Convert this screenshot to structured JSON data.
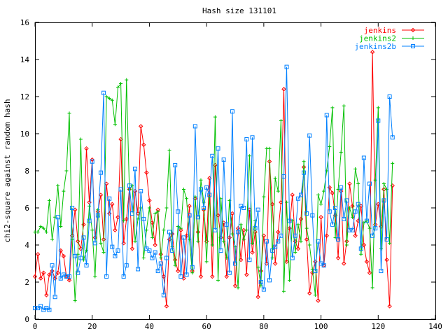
{
  "chart_data": {
    "type": "line",
    "title": "Hash size 131101",
    "xlabel": "",
    "ylabel": "chi2-square against random hash",
    "xlim": [
      0,
      140
    ],
    "ylim": [
      0,
      16
    ],
    "x_ticks": [
      "0",
      "20",
      "40",
      "60",
      "80",
      "100",
      "120",
      "140"
    ],
    "y_ticks": [
      "0",
      "2",
      "4",
      "6",
      "8",
      "10",
      "12",
      "14",
      "16"
    ],
    "grid": false,
    "legend_position": "top-right",
    "series": [
      {
        "name": "jenkins",
        "color": "#ff0000",
        "marker": "diamond",
        "x": [
          0,
          1,
          2,
          3,
          4,
          5,
          6,
          7,
          8,
          9,
          10,
          11,
          12,
          13,
          14,
          15,
          16,
          17,
          18,
          19,
          20,
          21,
          22,
          23,
          24,
          25,
          26,
          27,
          28,
          29,
          30,
          31,
          32,
          33,
          34,
          35,
          36,
          37,
          38,
          39,
          40,
          41,
          42,
          43,
          44,
          45,
          46,
          47,
          48,
          49,
          50,
          51,
          52,
          53,
          54,
          55,
          56,
          57,
          58,
          59,
          60,
          61,
          62,
          63,
          64,
          65,
          66,
          67,
          68,
          69,
          70,
          71,
          72,
          73,
          74,
          75,
          76,
          77,
          78,
          79,
          80,
          81,
          82,
          83,
          84,
          85,
          86,
          87,
          88,
          89,
          90,
          91,
          92,
          93,
          94,
          95,
          96,
          97,
          98,
          99,
          100,
          101,
          102,
          103,
          104,
          105,
          106,
          107,
          108,
          109,
          110,
          111,
          112,
          113,
          114,
          115,
          116,
          117,
          118,
          119,
          120,
          121,
          122,
          123,
          124,
          125
        ],
        "values": [
          2.3,
          3.5,
          2.2,
          2.5,
          1.3,
          2.4,
          2.6,
          2.2,
          2.5,
          3.7,
          3.4,
          2.3,
          2.1,
          4.5,
          5.9,
          4.2,
          3.8,
          5.1,
          9.2,
          6.3,
          8.6,
          4.4,
          5.8,
          6.7,
          4.3,
          7.3,
          5.7,
          6.2,
          4.8,
          5.5,
          9.7,
          4.1,
          5.4,
          7.0,
          3.8,
          6.9,
          5.7,
          10.4,
          9.4,
          7.9,
          6.4,
          5.2,
          4.0,
          5.9,
          3.5,
          2.3,
          0.7,
          4.3,
          4.6,
          3.2,
          2.6,
          4.8,
          2.2,
          4.5,
          6.1,
          2.6,
          6.5,
          4.7,
          2.3,
          5.9,
          4.2,
          7.6,
          2.3,
          8.3,
          5.6,
          4.4,
          5.2,
          2.3,
          4.4,
          5.7,
          1.8,
          4.9,
          3.2,
          4.8,
          2.4,
          5.9,
          3.6,
          4.7,
          1.2,
          2.6,
          4.5,
          3.0,
          8.5,
          6.2,
          3.0,
          4.7,
          6.3,
          12.4,
          3.1,
          4.9,
          6.7,
          4.2,
          3.8,
          5.4,
          8.2,
          4.3,
          1.4,
          2.5,
          3.1,
          1.0,
          5.5,
          2.9,
          4.5,
          7.1,
          6.8,
          5.6,
          3.3,
          6.9,
          3.0,
          4.2,
          7.3,
          6.1,
          4.5,
          5.3,
          6.1,
          4.0,
          3.1,
          2.5,
          14.4,
          5.1,
          6.2,
          5.0,
          7.0,
          3.2,
          0.7,
          7.2
        ]
      },
      {
        "name": "jenkins2",
        "color": "#00c000",
        "marker": "plus",
        "x": [
          0,
          1,
          2,
          3,
          4,
          5,
          6,
          7,
          8,
          9,
          10,
          11,
          12,
          13,
          14,
          15,
          16,
          17,
          18,
          19,
          20,
          21,
          22,
          23,
          24,
          25,
          26,
          27,
          28,
          29,
          30,
          31,
          32,
          33,
          34,
          35,
          36,
          37,
          38,
          39,
          40,
          41,
          42,
          43,
          44,
          45,
          46,
          47,
          48,
          49,
          50,
          51,
          52,
          53,
          54,
          55,
          56,
          57,
          58,
          59,
          60,
          61,
          62,
          63,
          64,
          65,
          66,
          67,
          68,
          69,
          70,
          71,
          72,
          73,
          74,
          75,
          76,
          77,
          78,
          79,
          80,
          81,
          82,
          83,
          84,
          85,
          86,
          87,
          88,
          89,
          90,
          91,
          92,
          93,
          94,
          95,
          96,
          97,
          98,
          99,
          100,
          101,
          102,
          103,
          104,
          105,
          106,
          107,
          108,
          109,
          110,
          111,
          112,
          113,
          114,
          115,
          116,
          117,
          118,
          119,
          120,
          121,
          122,
          123,
          124,
          125
        ],
        "values": [
          4.7,
          4.7,
          5.0,
          4.9,
          4.7,
          6.4,
          4.3,
          5.5,
          7.2,
          5.0,
          6.9,
          8.0,
          11.1,
          4.3,
          1.0,
          3.5,
          9.7,
          3.2,
          3.7,
          6.1,
          4.8,
          2.3,
          5.9,
          4.1,
          3.6,
          12.0,
          11.9,
          11.8,
          10.5,
          12.5,
          12.7,
          5.3,
          12.9,
          7.0,
          7.2,
          4.2,
          5.4,
          6.0,
          3.3,
          4.8,
          6.0,
          4.4,
          5.7,
          5.8,
          3.3,
          4.8,
          6.0,
          9.1,
          3.9,
          2.9,
          5.0,
          4.9,
          7.0,
          6.5,
          4.3,
          2.5,
          6.6,
          4.2,
          7.5,
          6.3,
          3.1,
          6.6,
          4.0,
          10.9,
          2.1,
          6.5,
          4.2,
          3.3,
          6.4,
          4.6,
          3.9,
          1.7,
          5.1,
          4.3,
          4.8,
          8.8,
          4.1,
          5.3,
          2.8,
          1.8,
          6.6,
          9.2,
          9.2,
          3.3,
          7.6,
          6.9,
          10.7,
          1.5,
          6.3,
          2.1,
          5.3,
          3.6,
          5.1,
          4.2,
          8.5,
          4.9,
          4.0,
          2.7,
          1.3,
          6.7,
          6.2,
          6.9,
          8.0,
          9.3,
          11.4,
          4.4,
          7.0,
          9.0,
          11.5,
          4.0,
          6.0,
          5.5,
          8.1,
          7.3,
          3.5,
          5.2,
          5.3,
          4.9,
          1.7,
          7.5,
          11.4,
          3.8,
          7.3,
          7.0,
          4.1,
          8.4
        ]
      },
      {
        "name": "jenkins2b",
        "color": "#0080ff",
        "marker": "square",
        "x": [
          0,
          1,
          2,
          3,
          4,
          5,
          6,
          7,
          8,
          9,
          10,
          11,
          12,
          13,
          14,
          15,
          16,
          17,
          18,
          19,
          20,
          21,
          22,
          23,
          24,
          25,
          26,
          27,
          28,
          29,
          30,
          31,
          32,
          33,
          34,
          35,
          36,
          37,
          38,
          39,
          40,
          41,
          42,
          43,
          44,
          45,
          46,
          47,
          48,
          49,
          50,
          51,
          52,
          53,
          54,
          55,
          56,
          57,
          58,
          59,
          60,
          61,
          62,
          63,
          64,
          65,
          66,
          67,
          68,
          69,
          70,
          71,
          72,
          73,
          74,
          75,
          76,
          77,
          78,
          79,
          80,
          81,
          82,
          83,
          84,
          85,
          86,
          87,
          88,
          89,
          90,
          91,
          92,
          93,
          94,
          95,
          96,
          97,
          98,
          99,
          100,
          101,
          102,
          103,
          104,
          105,
          106,
          107,
          108,
          109,
          110,
          111,
          112,
          113,
          114,
          115,
          116,
          117,
          118,
          119,
          120,
          121,
          122,
          123,
          124,
          125
        ],
        "values": [
          0.6,
          0.6,
          0.7,
          0.5,
          0.6,
          0.5,
          2.9,
          1.2,
          5.5,
          2.2,
          2.4,
          2.3,
          2.3,
          6.0,
          3.4,
          2.5,
          3.3,
          4.4,
          2.9,
          5.3,
          8.5,
          4.1,
          5.6,
          7.9,
          12.2,
          2.3,
          6.5,
          3.9,
          3.4,
          3.7,
          7.0,
          2.3,
          2.9,
          7.2,
          5.7,
          8.1,
          2.7,
          6.9,
          5.4,
          3.8,
          3.7,
          3.3,
          3.6,
          2.6,
          3.0,
          1.3,
          3.3,
          4.7,
          3.7,
          8.3,
          5.8,
          2.3,
          4.4,
          2.4,
          5.6,
          2.8,
          10.4,
          5.5,
          7.0,
          6.0,
          7.1,
          6.7,
          8.8,
          4.8,
          9.2,
          3.7,
          8.6,
          5.1,
          2.5,
          11.2,
          3.0,
          4.7,
          6.1,
          6.0,
          9.7,
          3.2,
          9.8,
          4.9,
          5.9,
          2.0,
          1.6,
          4.2,
          2.1,
          3.7,
          3.9,
          4.2,
          4.5,
          7.7,
          13.6,
          5.3,
          3.3,
          4.5,
          6.5,
          6.7,
          7.9,
          5.7,
          9.9,
          5.6,
          2.6,
          4.2,
          3.0,
          2.9,
          11.0,
          5.8,
          5.1,
          6.0,
          4.3,
          7.1,
          5.4,
          6.4,
          4.8,
          4.8,
          5.8,
          6.2,
          3.8,
          8.7,
          5.3,
          7.3,
          4.5,
          4.9,
          10.7,
          2.6,
          6.4,
          4.3,
          12.0,
          9.8
        ]
      }
    ]
  }
}
